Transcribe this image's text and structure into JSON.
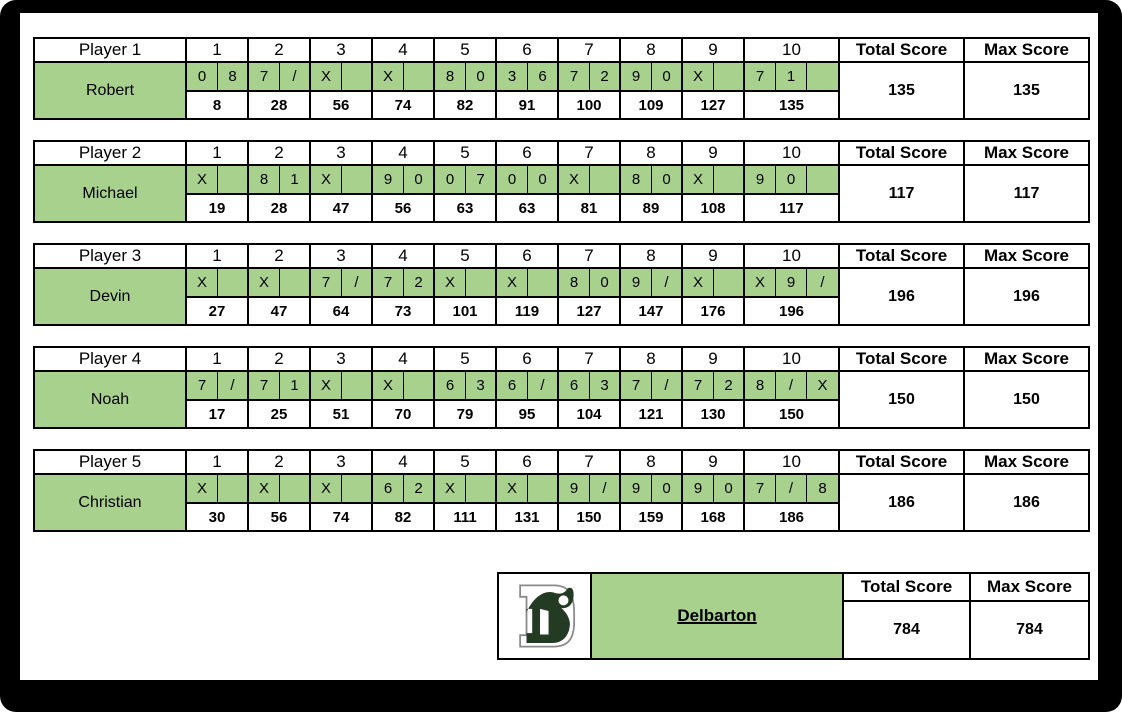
{
  "colors": {
    "cell_green": "#a9d18e",
    "logo_green": "#233b22",
    "grid_line": "#000000"
  },
  "headers": {
    "frames": [
      "1",
      "2",
      "3",
      "4",
      "5",
      "6",
      "7",
      "8",
      "9",
      "10"
    ],
    "total_score": "Total Score",
    "max_score": "Max Score"
  },
  "players": [
    {
      "label": "Player 1",
      "name": "Robert",
      "throws": [
        [
          "0",
          "8"
        ],
        [
          "7",
          "/"
        ],
        [
          "X",
          ""
        ],
        [
          "X",
          ""
        ],
        [
          "8",
          "0"
        ],
        [
          "3",
          "6"
        ],
        [
          "7",
          "2"
        ],
        [
          "9",
          "0"
        ],
        [
          "X",
          ""
        ],
        [
          "7",
          "1",
          ""
        ]
      ],
      "cumulative": [
        "8",
        "28",
        "56",
        "74",
        "82",
        "91",
        "100",
        "109",
        "127",
        "135"
      ],
      "total": "135",
      "max": "135"
    },
    {
      "label": "Player 2",
      "name": "Michael",
      "throws": [
        [
          "X",
          ""
        ],
        [
          "8",
          "1"
        ],
        [
          "X",
          ""
        ],
        [
          "9",
          "0"
        ],
        [
          "0",
          "7"
        ],
        [
          "0",
          "0"
        ],
        [
          "X",
          ""
        ],
        [
          "8",
          "0"
        ],
        [
          "X",
          ""
        ],
        [
          "9",
          "0",
          ""
        ]
      ],
      "cumulative": [
        "19",
        "28",
        "47",
        "56",
        "63",
        "63",
        "81",
        "89",
        "108",
        "117"
      ],
      "total": "117",
      "max": "117"
    },
    {
      "label": "Player 3",
      "name": "Devin",
      "throws": [
        [
          "X",
          ""
        ],
        [
          "X",
          ""
        ],
        [
          "7",
          "/"
        ],
        [
          "7",
          "2"
        ],
        [
          "X",
          ""
        ],
        [
          "X",
          ""
        ],
        [
          "8",
          "0"
        ],
        [
          "9",
          "/"
        ],
        [
          "X",
          ""
        ],
        [
          "X",
          "9",
          "/"
        ]
      ],
      "cumulative": [
        "27",
        "47",
        "64",
        "73",
        "101",
        "119",
        "127",
        "147",
        "176",
        "196"
      ],
      "total": "196",
      "max": "196"
    },
    {
      "label": "Player 4",
      "name": "Noah",
      "throws": [
        [
          "7",
          "/"
        ],
        [
          "7",
          "1"
        ],
        [
          "X",
          ""
        ],
        [
          "X",
          ""
        ],
        [
          "6",
          "3"
        ],
        [
          "6",
          "/"
        ],
        [
          "6",
          "3"
        ],
        [
          "7",
          "/"
        ],
        [
          "7",
          "2"
        ],
        [
          "8",
          "/",
          "X"
        ]
      ],
      "cumulative": [
        "17",
        "25",
        "51",
        "70",
        "79",
        "95",
        "104",
        "121",
        "130",
        "150"
      ],
      "total": "150",
      "max": "150"
    },
    {
      "label": "Player 5",
      "name": "Christian",
      "throws": [
        [
          "X",
          ""
        ],
        [
          "X",
          ""
        ],
        [
          "X",
          ""
        ],
        [
          "6",
          "2"
        ],
        [
          "X",
          ""
        ],
        [
          "X",
          ""
        ],
        [
          "9",
          "/"
        ],
        [
          "9",
          "0"
        ],
        [
          "9",
          "0"
        ],
        [
          "7",
          "/",
          "8"
        ]
      ],
      "cumulative": [
        "30",
        "56",
        "74",
        "82",
        "111",
        "131",
        "150",
        "159",
        "168",
        "186"
      ],
      "total": "186",
      "max": "186"
    }
  ],
  "team": {
    "name": "Delbarton",
    "logo": "delbarton-d-logo",
    "total": "784",
    "max": "784"
  }
}
